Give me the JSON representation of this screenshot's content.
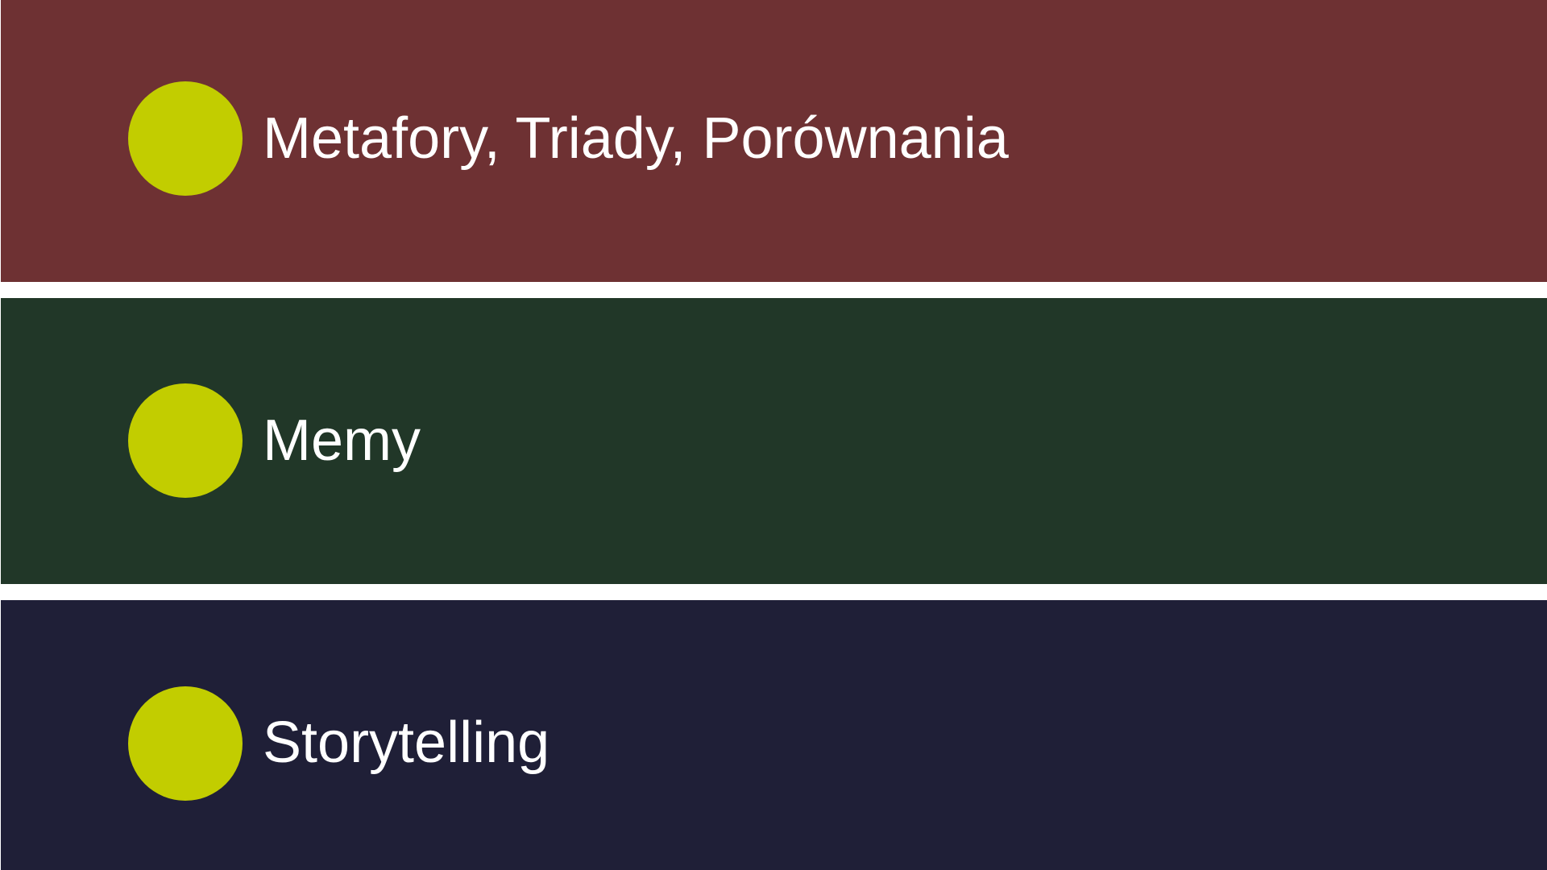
{
  "colors": {
    "background": "#ffffff",
    "dot": "#c2cd00",
    "text": "#ffffff"
  },
  "items": [
    {
      "label": "Metafory, Triady, Porównania",
      "color": "#6e3133",
      "icon": "filled-circle-bullet"
    },
    {
      "label": "Memy",
      "color": "#213728",
      "icon": "filled-circle-bullet"
    },
    {
      "label": "Storytelling",
      "color": "#1f1f37",
      "icon": "filled-circle-bullet"
    }
  ]
}
